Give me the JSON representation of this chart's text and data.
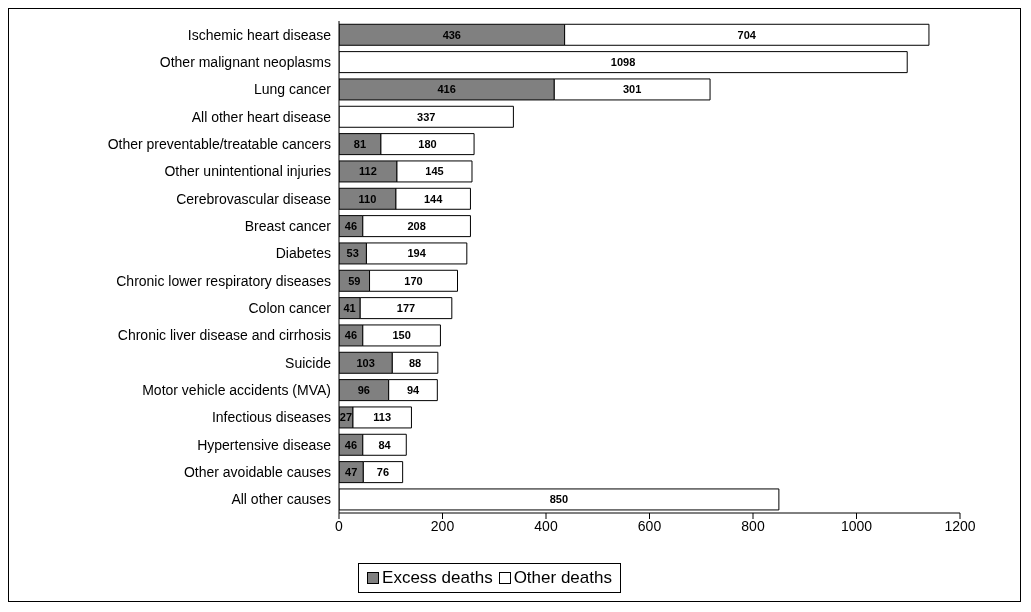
{
  "chart_data": {
    "type": "bar",
    "orientation": "horizontal",
    "stacked": true,
    "categories": [
      "Ischemic heart disease",
      "Other malignant neoplasms",
      "Lung cancer",
      "All other heart disease",
      "Other preventable/treatable cancers",
      "Other unintentional injuries",
      "Cerebrovascular disease",
      "Breast cancer",
      "Diabetes",
      "Chronic lower respiratory diseases",
      "Colon cancer",
      "Chronic liver disease and cirrhosis",
      "Suicide",
      "Motor vehicle accidents (MVA)",
      "Infectious diseases",
      "Hypertensive disease",
      "Other avoidable causes",
      "All other causes"
    ],
    "series": [
      {
        "name": "Excess deaths",
        "color": "#808080",
        "values": [
          436,
          null,
          416,
          null,
          81,
          112,
          110,
          46,
          53,
          59,
          41,
          46,
          103,
          96,
          27,
          46,
          47,
          null
        ]
      },
      {
        "name": "Other deaths",
        "color": "#ffffff",
        "values": [
          704,
          1098,
          301,
          337,
          180,
          145,
          144,
          208,
          194,
          170,
          177,
          150,
          88,
          94,
          113,
          84,
          76,
          850
        ]
      }
    ],
    "xlim": [
      0,
      1200
    ],
    "xticks": [
      0,
      200,
      400,
      600,
      800,
      1000,
      1200
    ],
    "data_labels": true,
    "legend": "bottom",
    "grid": false
  }
}
